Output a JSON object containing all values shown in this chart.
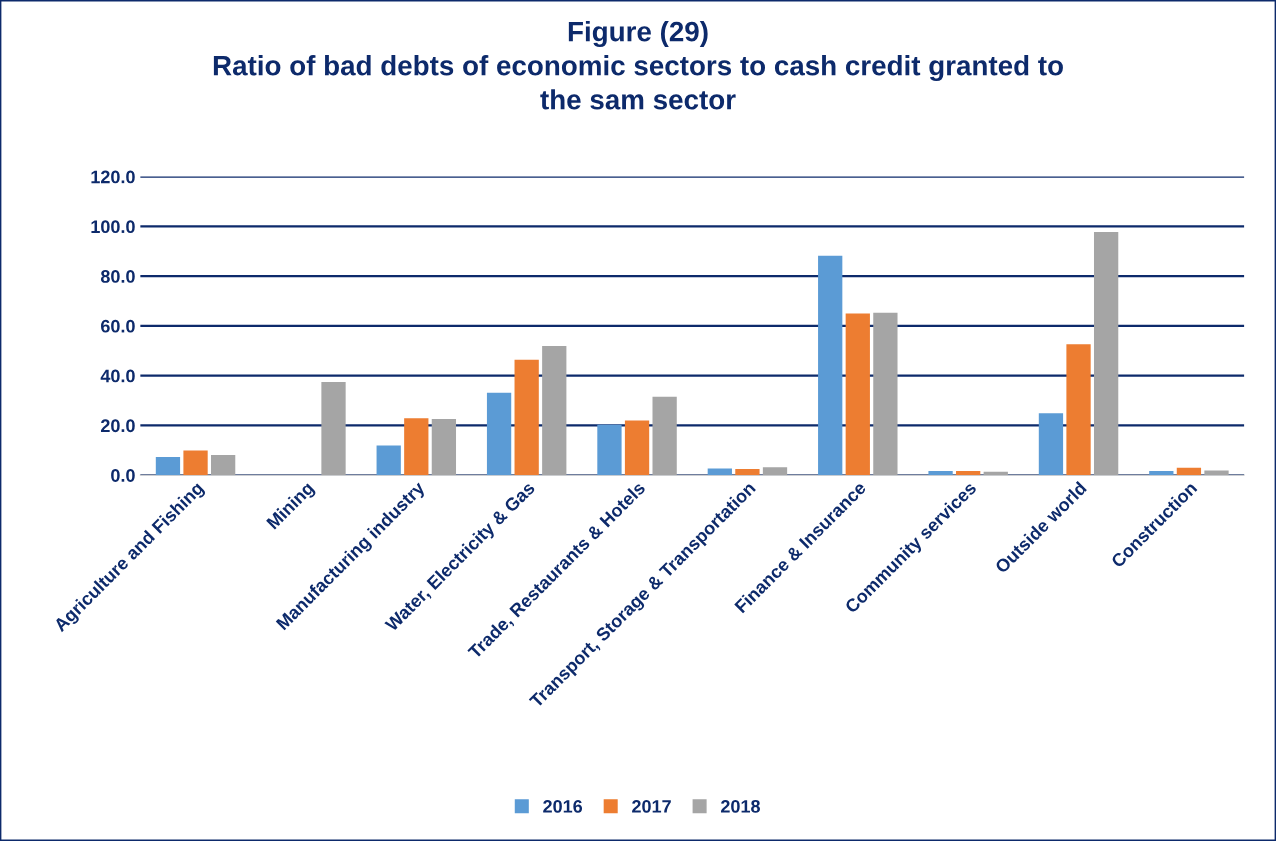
{
  "chart_data": {
    "type": "bar",
    "title": "Figure (29)\nRatio of bad debts of economic sectors to cash credit granted to\nthe sam sector",
    "categories": [
      "Agriculture and Fishing",
      "Mining",
      "Manufacturing industry",
      "Water, Electricity & Gas",
      "Trade, Restaurants & Hotels",
      "Transport, Storage & Transportation",
      "Finance & Insurance",
      "Community services",
      "Outside world",
      "Construction"
    ],
    "series": [
      {
        "name": "2016",
        "color": "#5b9bd5",
        "values": [
          7.3,
          0,
          11.9,
          33.1,
          20.3,
          2.7,
          88.2,
          1.7,
          24.9,
          1.7
        ]
      },
      {
        "name": "2017",
        "color": "#ed7d31",
        "values": [
          9.9,
          0,
          22.9,
          46.4,
          22.0,
          2.5,
          65.0,
          1.7,
          52.6,
          3.0
        ]
      },
      {
        "name": "2018",
        "color": "#a5a5a5",
        "values": [
          8.1,
          37.4,
          22.6,
          51.9,
          31.5,
          3.2,
          65.3,
          1.4,
          97.7,
          1.9
        ]
      }
    ],
    "ylim": [
      0,
      120
    ],
    "yticks": [
      {
        "value": 0,
        "label": "0.0"
      },
      {
        "value": 20,
        "label": "20.0"
      },
      {
        "value": 40,
        "label": "40.0"
      },
      {
        "value": 60,
        "label": "60.0"
      },
      {
        "value": 80,
        "label": "80.0"
      },
      {
        "value": 100,
        "label": "100.0"
      },
      {
        "value": 120,
        "label": "120.0"
      }
    ],
    "grid": "y",
    "legend": "bottom"
  }
}
